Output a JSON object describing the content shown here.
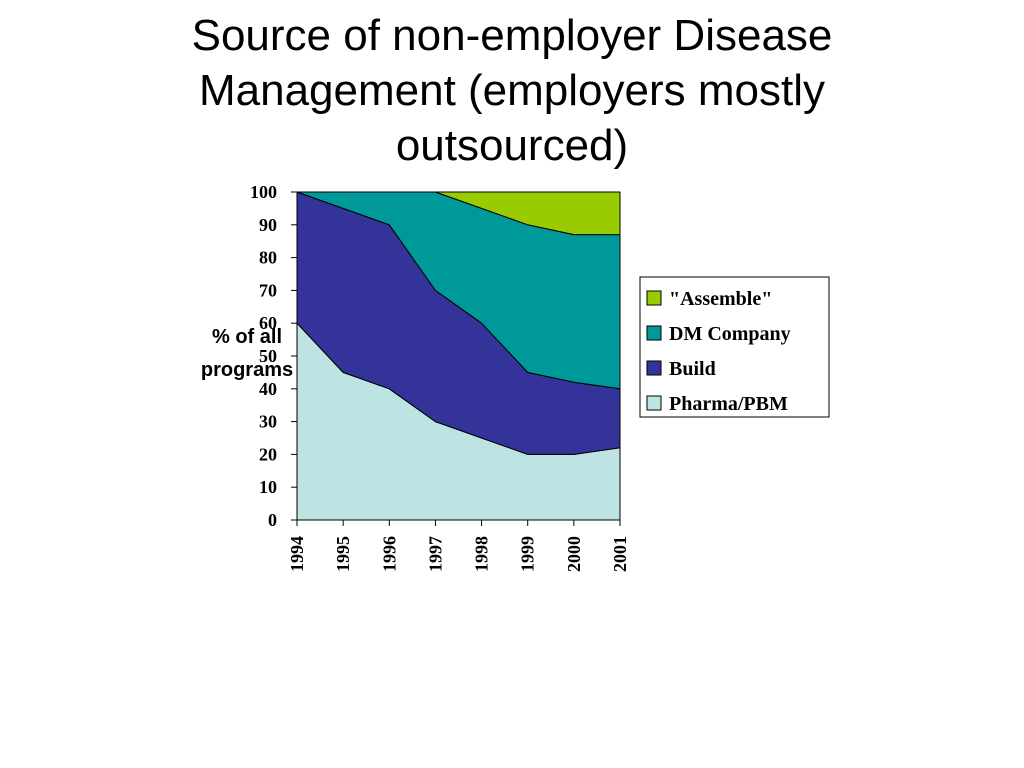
{
  "slide": {
    "title_lines": [
      "Source of non-employer Disease",
      "Management (employers mostly",
      "outsourced)"
    ]
  },
  "chart_data": {
    "type": "area",
    "stacked": true,
    "x": [
      "1994",
      "1995",
      "1996",
      "1997",
      "1998",
      "1999",
      "2000",
      "2001"
    ],
    "ylabel_lines": [
      "% of all",
      "programs"
    ],
    "ylim": [
      0,
      100
    ],
    "yticks": [
      0,
      10,
      20,
      30,
      40,
      50,
      60,
      70,
      80,
      90,
      100
    ],
    "grid": false,
    "legend_position": "right",
    "series": [
      {
        "name": "Pharma/PBM",
        "color": "#bde3e3",
        "values": [
          60,
          45,
          40,
          30,
          25,
          20,
          20,
          22
        ]
      },
      {
        "name": "Build",
        "color": "#333399",
        "values": [
          40,
          50,
          50,
          40,
          35,
          25,
          22,
          18
        ]
      },
      {
        "name": "DM Company",
        "color": "#009999",
        "values": [
          0,
          5,
          10,
          30,
          35,
          45,
          45,
          47
        ]
      },
      {
        "name": "\"Assemble\"",
        "color": "#99cc00",
        "values": [
          0,
          0,
          0,
          0,
          5,
          10,
          13,
          13
        ]
      }
    ],
    "legend_order": [
      "\"Assemble\"",
      "DM Company",
      "Build",
      "Pharma/PBM"
    ]
  }
}
